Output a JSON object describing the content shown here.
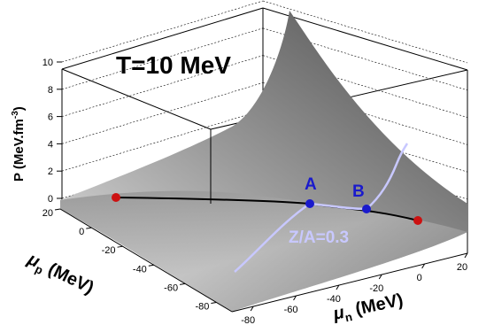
{
  "chart_data": {
    "type": "surface3d",
    "title": "T=10 MeV",
    "zlabel": "P (MeV.fm",
    "zlabel_superscript": "-3",
    "zlabel_close": ")",
    "xlabel": "μ",
    "xlabel_sub": "n",
    "xlabel_unit": " (MeV)",
    "ylabel": "μ",
    "ylabel_sub": "p",
    "ylabel_unit": " (MeV)",
    "xlim": [
      -90,
      20
    ],
    "ylim": [
      -90,
      20
    ],
    "zlim": [
      -1,
      10
    ],
    "x_ticks": [
      -80,
      -60,
      -40,
      -20,
      0,
      20
    ],
    "y_ticks": [
      -80,
      -60,
      -40,
      -20,
      0,
      20
    ],
    "z_ticks": [
      0,
      2,
      4,
      6,
      8,
      10
    ],
    "curve_label": "Z/A=0.3",
    "point_labels": [
      "A",
      "B"
    ],
    "colors": {
      "surface_dark": "#5a5a5a",
      "surface_light": "#d8d8d8",
      "black_path": "#000000",
      "curve": "#c8c8ff",
      "points_blue": "#1a1acc",
      "points_red": "#cc1111"
    }
  }
}
